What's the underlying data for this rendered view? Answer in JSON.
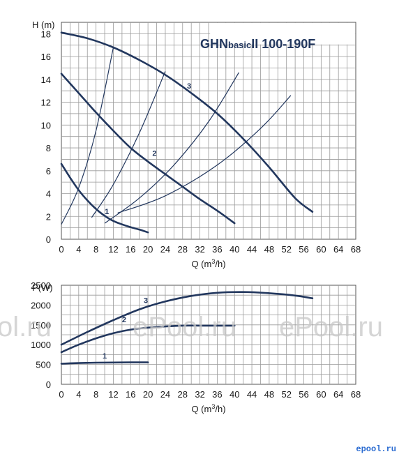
{
  "watermarks": [
    "ol.ru",
    "ePool.ru",
    "ePool.ru"
  ],
  "site_logo": "epool.ru",
  "chart_data": [
    {
      "type": "line",
      "title_main": "GHN",
      "title_basic": "basic",
      "title_rest": "II  100-190F",
      "ylabel": "H (m)",
      "xlabel_prefix": "Q (m",
      "xlabel_sup": "3",
      "xlabel_suffix": "/h)",
      "xlim": [
        0,
        68
      ],
      "ylim": [
        0,
        19
      ],
      "xticks": [
        0,
        4,
        8,
        12,
        16,
        20,
        24,
        28,
        32,
        36,
        40,
        44,
        48,
        52,
        56,
        60,
        64,
        68
      ],
      "yticks": [
        0,
        2,
        4,
        6,
        8,
        10,
        12,
        14,
        16,
        18
      ],
      "grid": true,
      "series": [
        {
          "name": "1",
          "x": [
            0,
            2,
            4,
            6,
            8,
            10,
            12,
            14,
            16,
            18,
            20
          ],
          "y": [
            6.6,
            5.4,
            4.3,
            3.4,
            2.65,
            2.05,
            1.6,
            1.3,
            1.05,
            0.85,
            0.6
          ]
        },
        {
          "name": "2",
          "x": [
            0,
            4,
            8,
            12,
            16,
            20,
            24,
            28,
            32,
            36,
            40
          ],
          "y": [
            14.5,
            12.8,
            11.1,
            9.5,
            8.0,
            6.8,
            5.7,
            4.6,
            3.5,
            2.5,
            1.4
          ]
        },
        {
          "name": "3",
          "x": [
            0,
            6,
            12,
            18,
            24,
            30,
            36,
            42,
            48,
            54,
            58
          ],
          "y": [
            18.1,
            17.6,
            16.8,
            15.7,
            14.4,
            12.8,
            11.0,
            8.8,
            6.3,
            3.6,
            2.4
          ]
        }
      ],
      "system_curves": [
        {
          "x": [
            0,
            4,
            8,
            12
          ],
          "y": [
            1.3,
            4.5,
            9.5,
            16.8
          ]
        },
        {
          "x": [
            7,
            12,
            18,
            24
          ],
          "y": [
            1.9,
            4.8,
            9.3,
            14.7
          ]
        },
        {
          "x": [
            10,
            18,
            26,
            34,
            41
          ],
          "y": [
            1.4,
            3.6,
            6.5,
            10.3,
            14.6
          ]
        },
        {
          "x": [
            13,
            24,
            36,
            46,
            53
          ],
          "y": [
            2.3,
            3.8,
            6.5,
            9.7,
            12.6
          ]
        }
      ],
      "curve_labels": [
        {
          "text": "1",
          "x": 10.5,
          "y": 2.2
        },
        {
          "text": "2",
          "x": 21.5,
          "y": 7.3
        },
        {
          "text": "3",
          "x": 29.5,
          "y": 13.2
        }
      ]
    },
    {
      "type": "line",
      "ylabel": "P(W)",
      "xlabel_prefix": "Q (m",
      "xlabel_sup": "3",
      "xlabel_suffix": "/h)",
      "xlim": [
        0,
        68
      ],
      "ylim": [
        0,
        2500
      ],
      "xticks": [
        0,
        4,
        8,
        12,
        16,
        20,
        24,
        28,
        32,
        36,
        40,
        44,
        48,
        52,
        56,
        60,
        64,
        68
      ],
      "yticks": [
        0,
        500,
        1000,
        1500,
        2000,
        2500
      ],
      "grid": true,
      "series": [
        {
          "name": "1",
          "x": [
            0,
            4,
            8,
            12,
            16,
            20
          ],
          "y": [
            520,
            535,
            545,
            550,
            552,
            552
          ]
        },
        {
          "name": "2",
          "x": [
            0,
            4,
            8,
            12,
            16,
            20,
            24,
            28,
            32,
            36,
            40
          ],
          "y": [
            810,
            1000,
            1160,
            1290,
            1380,
            1430,
            1460,
            1480,
            1480,
            1480,
            1480
          ]
        },
        {
          "name": "3",
          "x": [
            0,
            6,
            12,
            18,
            24,
            30,
            36,
            42,
            48,
            54,
            58
          ],
          "y": [
            1000,
            1320,
            1620,
            1890,
            2090,
            2230,
            2310,
            2330,
            2300,
            2240,
            2170
          ]
        }
      ],
      "curve_labels": [
        {
          "text": "1",
          "x": 10,
          "y": 650
        },
        {
          "text": "2",
          "x": 14.5,
          "y": 1570
        },
        {
          "text": "3",
          "x": 19.5,
          "y": 2050
        }
      ]
    }
  ]
}
